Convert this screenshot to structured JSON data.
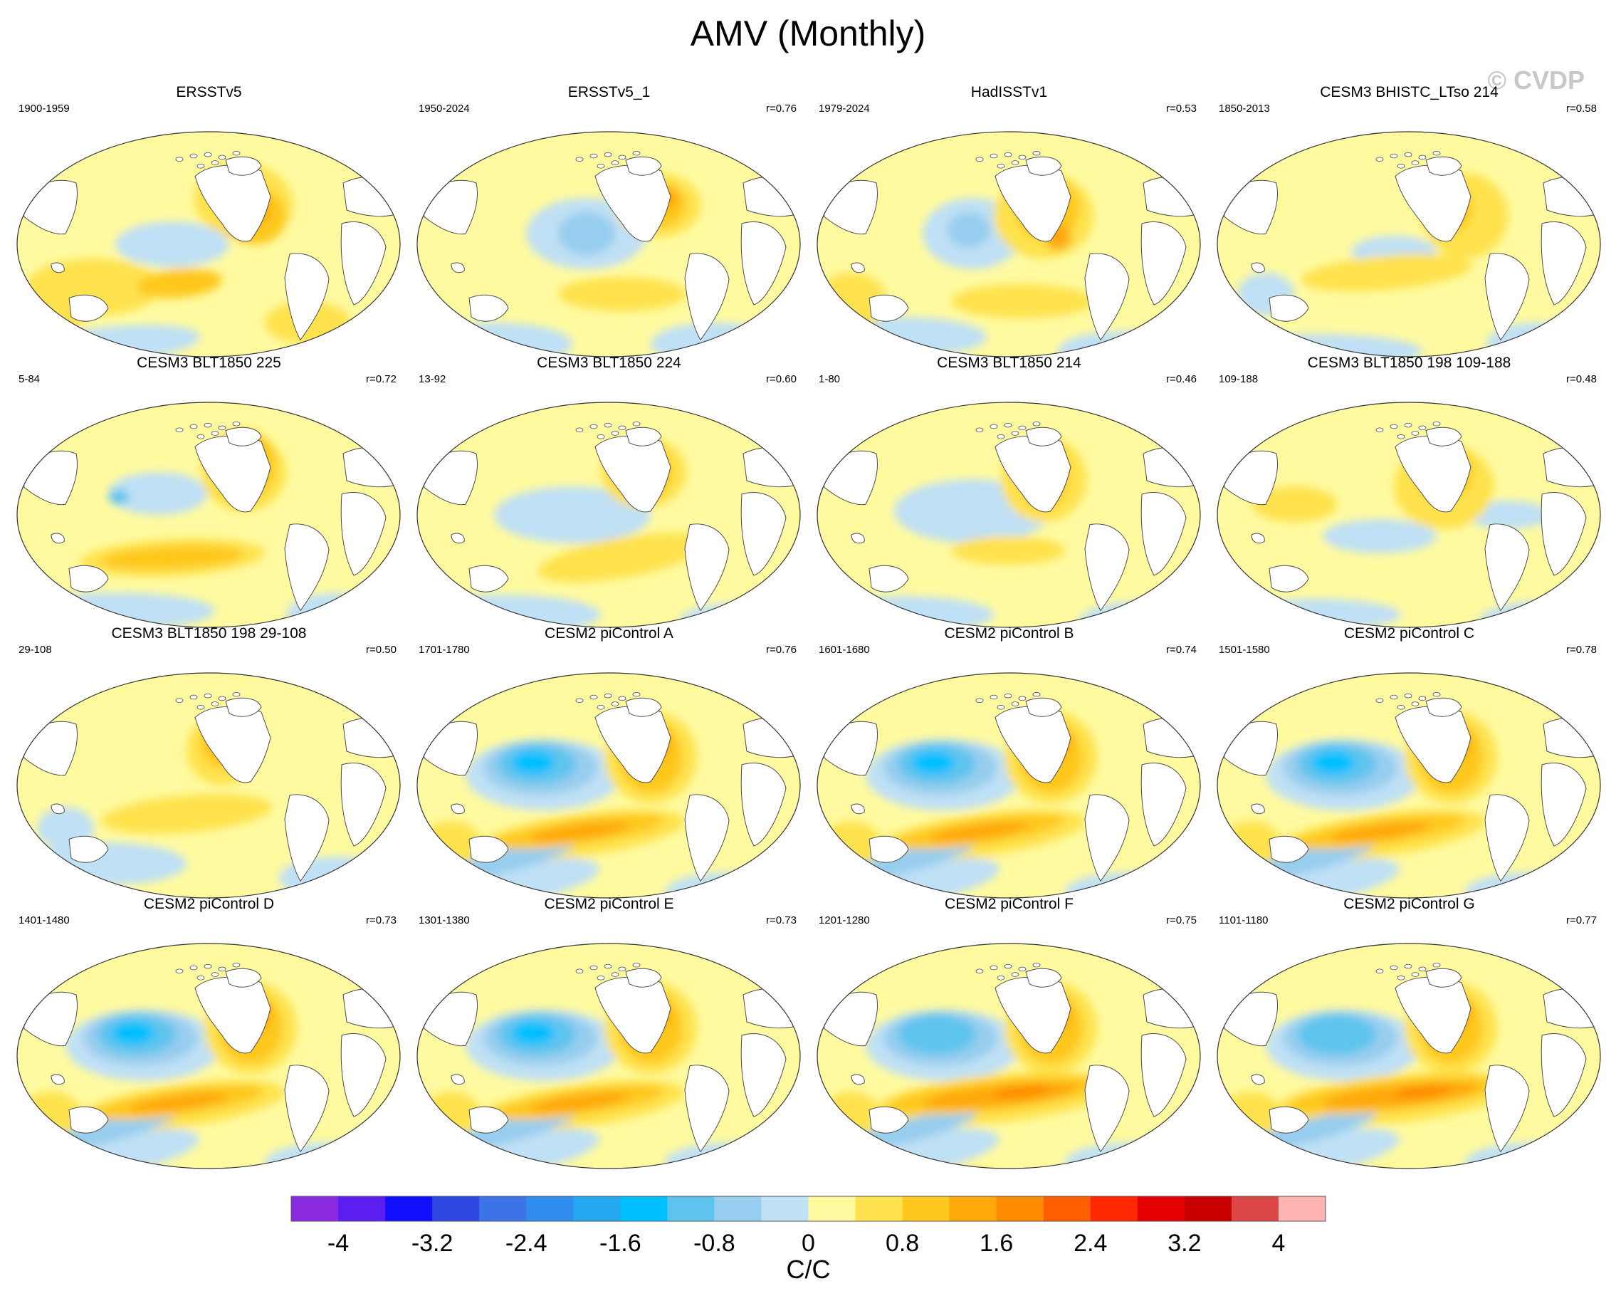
{
  "title": "AMV (Monthly)",
  "watermark": "© CVDP",
  "panels": [
    {
      "title": "ERSSTv5",
      "years": "1900-1959",
      "r": "",
      "style": "obs1"
    },
    {
      "title": "ERSSTv5_1",
      "years": "1950-2024",
      "r": "r=0.76",
      "style": "obs2"
    },
    {
      "title": "HadISSTv1",
      "years": "1979-2024",
      "r": "r=0.53",
      "style": "obs3"
    },
    {
      "title": "CESM3 BHISTC_LTso 214",
      "years": "1850-2013",
      "r": "r=0.58",
      "style": "hist"
    },
    {
      "title": "CESM3 BLT1850 225",
      "years": "5-84",
      "r": "r=0.72",
      "style": "blt1"
    },
    {
      "title": "CESM3 BLT1850 224",
      "years": "13-92",
      "r": "r=0.60",
      "style": "blt2"
    },
    {
      "title": "CESM3 BLT1850 214",
      "years": "1-80",
      "r": "r=0.46",
      "style": "blt3"
    },
    {
      "title": "CESM3 BLT1850 198 109-188",
      "years": "109-188",
      "r": "r=0.48",
      "style": "blt4"
    },
    {
      "title": "CESM3 BLT1850 198 29-108",
      "years": "29-108",
      "r": "r=0.50",
      "style": "blt5"
    },
    {
      "title": "CESM2 piControl A",
      "years": "1701-1780",
      "r": "r=0.76",
      "style": "pic"
    },
    {
      "title": "CESM2 piControl B",
      "years": "1601-1680",
      "r": "r=0.74",
      "style": "pic"
    },
    {
      "title": "CESM2 piControl C",
      "years": "1501-1580",
      "r": "r=0.78",
      "style": "pic"
    },
    {
      "title": "CESM2 piControl D",
      "years": "1401-1480",
      "r": "r=0.73",
      "style": "pic"
    },
    {
      "title": "CESM2 piControl E",
      "years": "1301-1380",
      "r": "r=0.73",
      "style": "pic"
    },
    {
      "title": "CESM2 piControl F",
      "years": "1201-1280",
      "r": "r=0.75",
      "style": "pic2"
    },
    {
      "title": "CESM2 piControl G",
      "years": "1101-1180",
      "r": "r=0.77",
      "style": "pic2"
    }
  ],
  "colorbar": {
    "levels": [
      -4.4,
      -4,
      -3.6,
      -3.2,
      -2.8,
      -2.4,
      -2,
      -1.6,
      -1.2,
      -0.8,
      -0.4,
      0,
      0.4,
      0.8,
      1.2,
      1.6,
      2,
      2.4,
      2.8,
      3.2,
      3.6,
      4,
      4.4
    ],
    "colors": [
      "#8a2be2",
      "#5b1ef0",
      "#1010ff",
      "#2f49e0",
      "#3c73e6",
      "#2f8cf0",
      "#25a8f2",
      "#00bfff",
      "#5ec4ee",
      "#97cdee",
      "#bfe0f5",
      "#fffaa0",
      "#ffe24d",
      "#ffc81e",
      "#ffa80a",
      "#ff8c00",
      "#ff5f00",
      "#ff2800",
      "#e50000",
      "#c80000",
      "#dc4646",
      "#ffb4b4"
    ],
    "tick_labels": [
      "-4",
      "-3.2",
      "-2.4",
      "-1.6",
      "-0.8",
      "0",
      "0.8",
      "1.6",
      "2.4",
      "3.2",
      "4"
    ],
    "unit": "C/C"
  }
}
